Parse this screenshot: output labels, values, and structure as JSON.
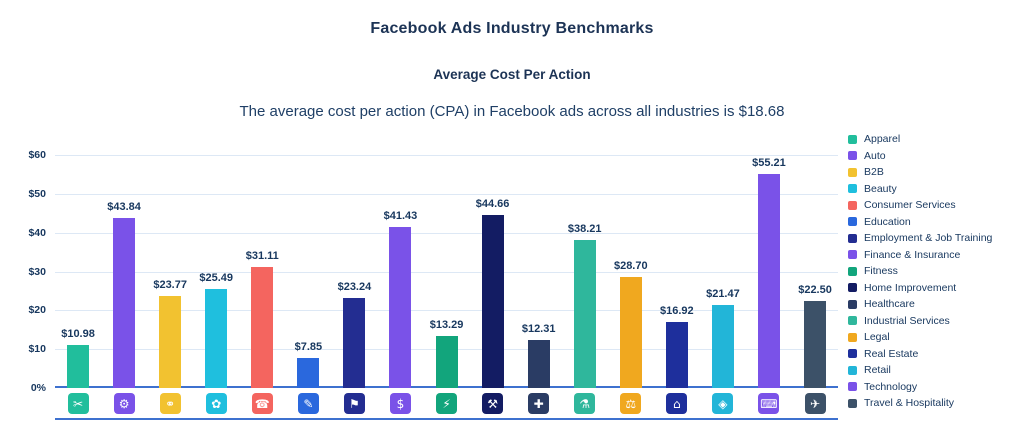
{
  "header": {
    "title": "Facebook Ads Industry Benchmarks",
    "subtitle": "Average Cost Per Action",
    "caption": "The average cost per action (CPA) in Facebook ads across all industries is $18.68"
  },
  "chart_data": {
    "type": "bar",
    "title": "Facebook Ads Industry Benchmarks",
    "subtitle": "Average Cost Per Action",
    "annotation": "The average cost per action (CPA) in Facebook ads across all industries is $18.68",
    "average_cpa": 18.68,
    "xlabel": "",
    "ylabel": "",
    "ylim": [
      0,
      60
    ],
    "y_ticks": [
      "$60",
      "$50",
      "$40",
      "$30",
      "$20",
      "$10",
      "0%"
    ],
    "grid": true,
    "legend_position": "right",
    "categories": [
      "Apparel",
      "Auto",
      "B2B",
      "Beauty",
      "Consumer Services",
      "Education",
      "Employment & Job Training",
      "Finance & Insurance",
      "Fitness",
      "Home Improvement",
      "Healthcare",
      "Industrial Services",
      "Legal",
      "Real Estate",
      "Retail",
      "Technology",
      "Travel & Hospitality"
    ],
    "values": [
      10.98,
      43.84,
      23.77,
      25.49,
      31.11,
      7.85,
      23.24,
      41.43,
      13.29,
      44.66,
      12.31,
      38.21,
      28.7,
      16.92,
      21.47,
      55.21,
      22.5
    ],
    "value_labels": [
      "$10.98",
      "$43.84",
      "$23.77",
      "$25.49",
      "$31.11",
      "$7.85",
      "$23.24",
      "$41.43",
      "$13.29",
      "$44.66",
      "$12.31",
      "$38.21",
      "$28.70",
      "$16.92",
      "$21.47",
      "$55.21",
      "$22.50"
    ],
    "colors": [
      "#21be9c",
      "#7a52e8",
      "#f2c230",
      "#1fbfde",
      "#f4655f",
      "#2a68dd",
      "#232d91",
      "#7a52e8",
      "#12a57c",
      "#131c63",
      "#2a3c64",
      "#2fb79c",
      "#f0a81f",
      "#1e2f9c",
      "#22b5d8",
      "#7a52e8",
      "#3c5168"
    ],
    "icons": [
      {
        "name": "tshirt-icon",
        "glyph": "✂"
      },
      {
        "name": "car-icon",
        "glyph": "⚙"
      },
      {
        "name": "b2b-handshake-icon",
        "glyph": "⚭"
      },
      {
        "name": "beauty-icon",
        "glyph": "✿"
      },
      {
        "name": "headset-icon",
        "glyph": "☎"
      },
      {
        "name": "graduation-cap-icon",
        "glyph": "✎"
      },
      {
        "name": "briefcase-icon",
        "glyph": "⚑"
      },
      {
        "name": "money-bag-icon",
        "glyph": "$"
      },
      {
        "name": "fitness-icon",
        "glyph": "⚡"
      },
      {
        "name": "hammer-wrench-icon",
        "glyph": "⚒"
      },
      {
        "name": "medical-cross-icon",
        "glyph": "✚"
      },
      {
        "name": "factory-icon",
        "glyph": "⚗"
      },
      {
        "name": "gavel-icon",
        "glyph": "⚖"
      },
      {
        "name": "building-icon",
        "glyph": "⌂"
      },
      {
        "name": "price-tag-icon",
        "glyph": "◈"
      },
      {
        "name": "computer-icon",
        "glyph": "⌨"
      },
      {
        "name": "luggage-icon",
        "glyph": "✈"
      }
    ]
  }
}
